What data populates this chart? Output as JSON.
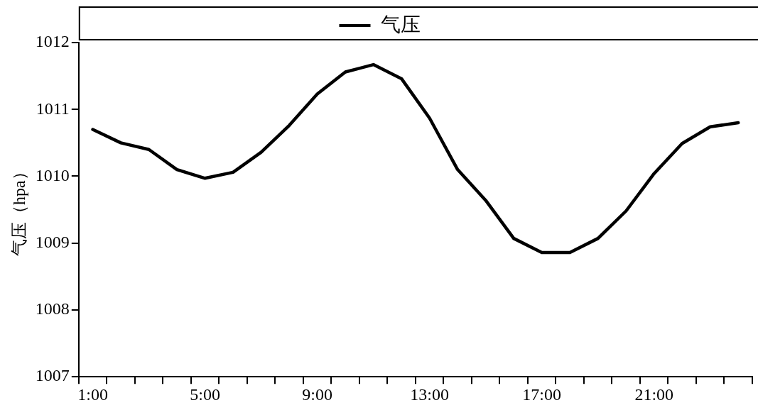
{
  "chart_data": {
    "type": "line",
    "ylabel": "气压（hpa）",
    "categories": [
      "1:00",
      null,
      null,
      null,
      "5:00",
      null,
      null,
      null,
      "9:00",
      null,
      null,
      null,
      "13:00",
      null,
      null,
      null,
      "17:00",
      null,
      null,
      null,
      "21:00",
      null,
      null,
      null
    ],
    "series": [
      {
        "name": "气压",
        "color": "#000000",
        "values": [
          1010.7,
          1010.5,
          1010.4,
          1010.1,
          1009.97,
          1010.06,
          1010.36,
          1010.76,
          1011.23,
          1011.56,
          1011.67,
          1011.46,
          1010.87,
          1010.1,
          1009.64,
          1009.07,
          1008.86,
          1008.86,
          1009.07,
          1009.48,
          1010.04,
          1010.49,
          1010.74,
          1010.8
        ]
      }
    ],
    "ylim": [
      1007,
      1012
    ],
    "yticks": [
      1007,
      1008,
      1009,
      1010,
      1011,
      1012
    ],
    "legend": "top",
    "grid": false,
    "marker": "none",
    "line_style": "solid"
  }
}
